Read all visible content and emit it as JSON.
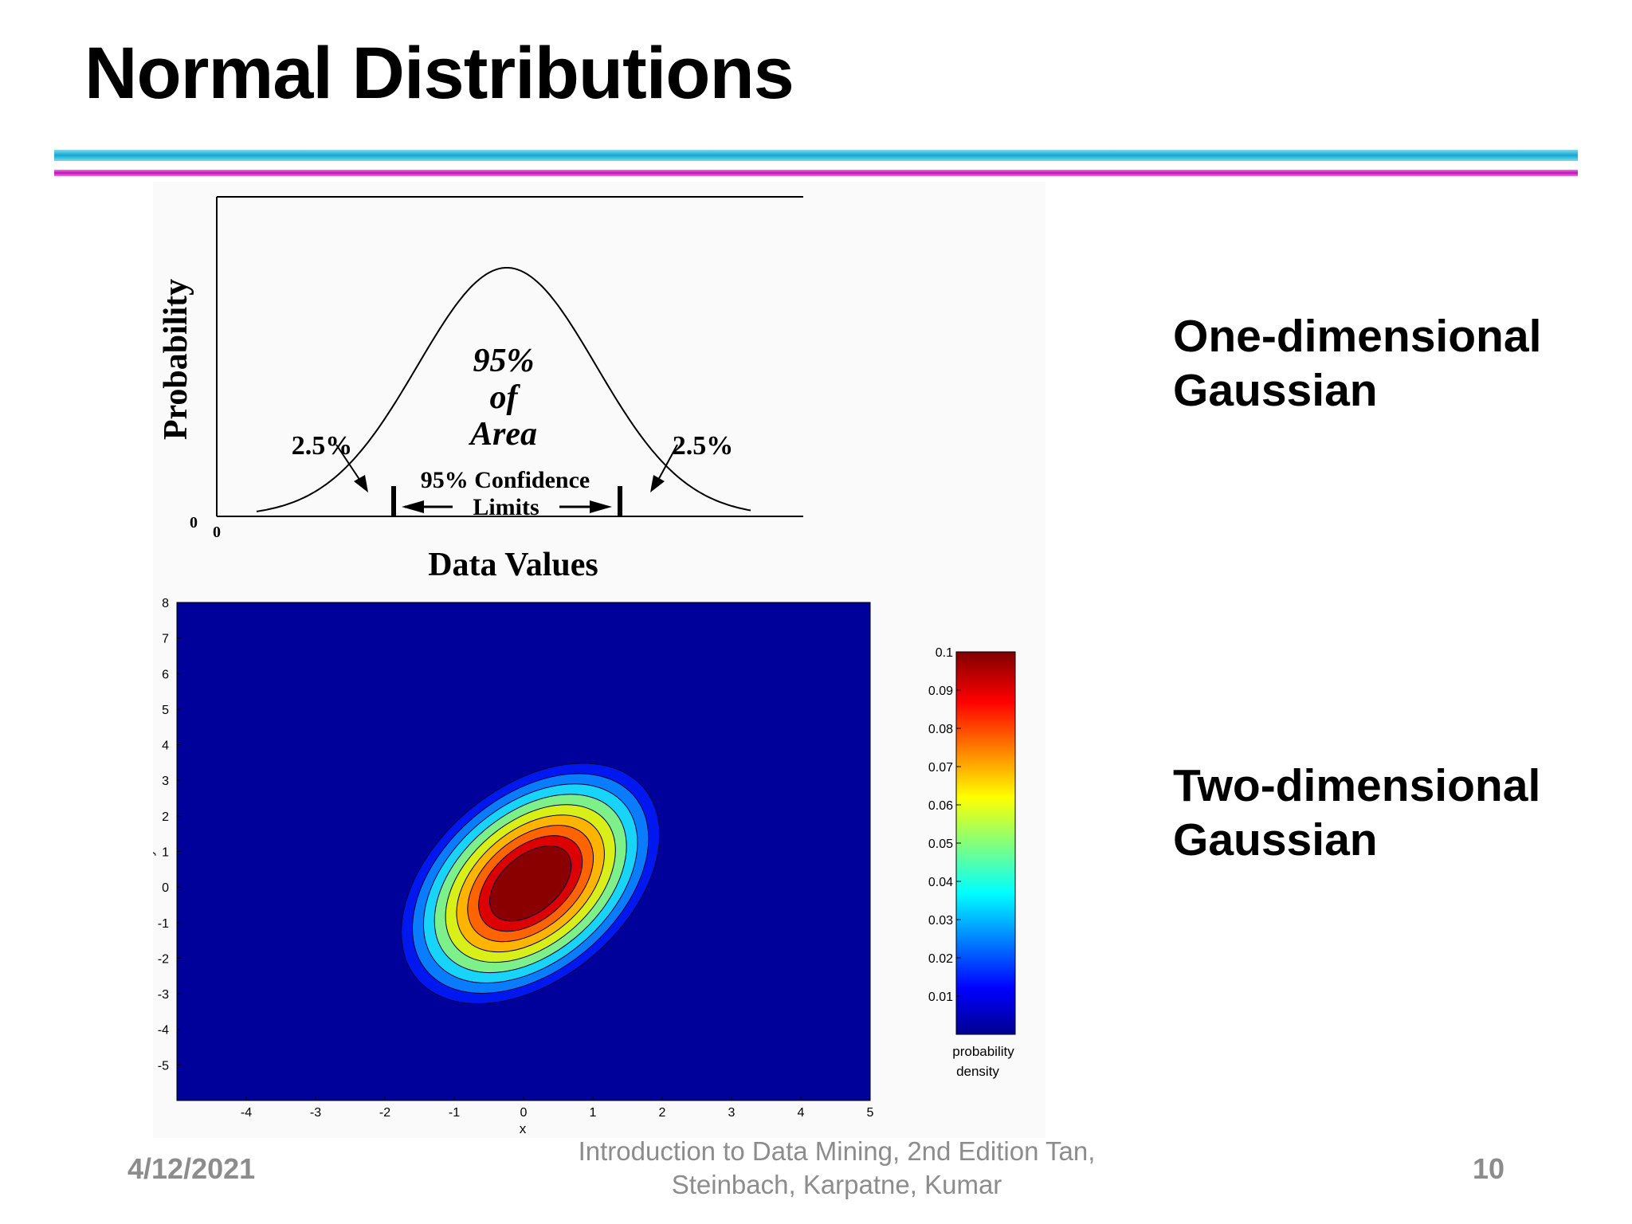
{
  "slide": {
    "title": "Normal Distributions",
    "one_dim_label_line1": "One-dimensional",
    "one_dim_label_line2": "Gaussian",
    "two_dim_label_line1": "Two-dimensional",
    "two_dim_label_line2": "Gaussian"
  },
  "footer": {
    "date": "4/12/2021",
    "citation_line1": "Introduction to Data Mining, 2nd Edition   Tan,",
    "citation_line2": "Steinbach, Karpatne, Kumar",
    "page": "10"
  },
  "colors": {
    "rule_cyan": "#12a9d2",
    "rule_magenta": "#c012b8",
    "footer_gray": "#8c8c8c"
  },
  "chart_data": [
    {
      "type": "line",
      "xlabel": "Data Values",
      "ylabel": "Probability",
      "x_origin_label": "0",
      "y_origin_label": "0",
      "annotations": {
        "center_line1": "95%",
        "center_line2": "of",
        "center_line3": "Area",
        "left_tail": "2.5%",
        "right_tail": "2.5%",
        "limits_line1": "95% Confidence",
        "limits_line2": "Limits"
      }
    },
    {
      "type": "heatmap",
      "xlabel": "x",
      "ylabel": "y",
      "xlim": [
        -5,
        5
      ],
      "ylim": [
        -6,
        8
      ],
      "x_ticks": [
        "-4",
        "-3",
        "-2",
        "-1",
        "0",
        "1",
        "2",
        "3",
        "4",
        "5"
      ],
      "y_ticks": [
        "8",
        "7",
        "6",
        "5",
        "4",
        "3",
        "2",
        "1",
        "0",
        "-1",
        "-2",
        "-3",
        "-4",
        "-5"
      ],
      "colorbar_label_line1": "probability",
      "colorbar_label_line2": "density",
      "colorbar_ticks": [
        "0.1",
        "0.09",
        "0.08",
        "0.07",
        "0.06",
        "0.05",
        "0.04",
        "0.03",
        "0.02",
        "0.01"
      ],
      "colorbar_range": [
        0,
        0.1
      ],
      "levels": [
        0.01,
        0.02,
        0.03,
        0.04,
        0.05,
        0.06,
        0.07,
        0.08,
        0.09
      ],
      "mean": [
        0.1,
        0.1
      ],
      "level_colors": [
        "#00009a",
        "#0018f0",
        "#0a7cff",
        "#18d4f8",
        "#7ef08a",
        "#d8f018",
        "#ffb400",
        "#ff6400",
        "#dd0000",
        "#8a0000"
      ]
    }
  ]
}
